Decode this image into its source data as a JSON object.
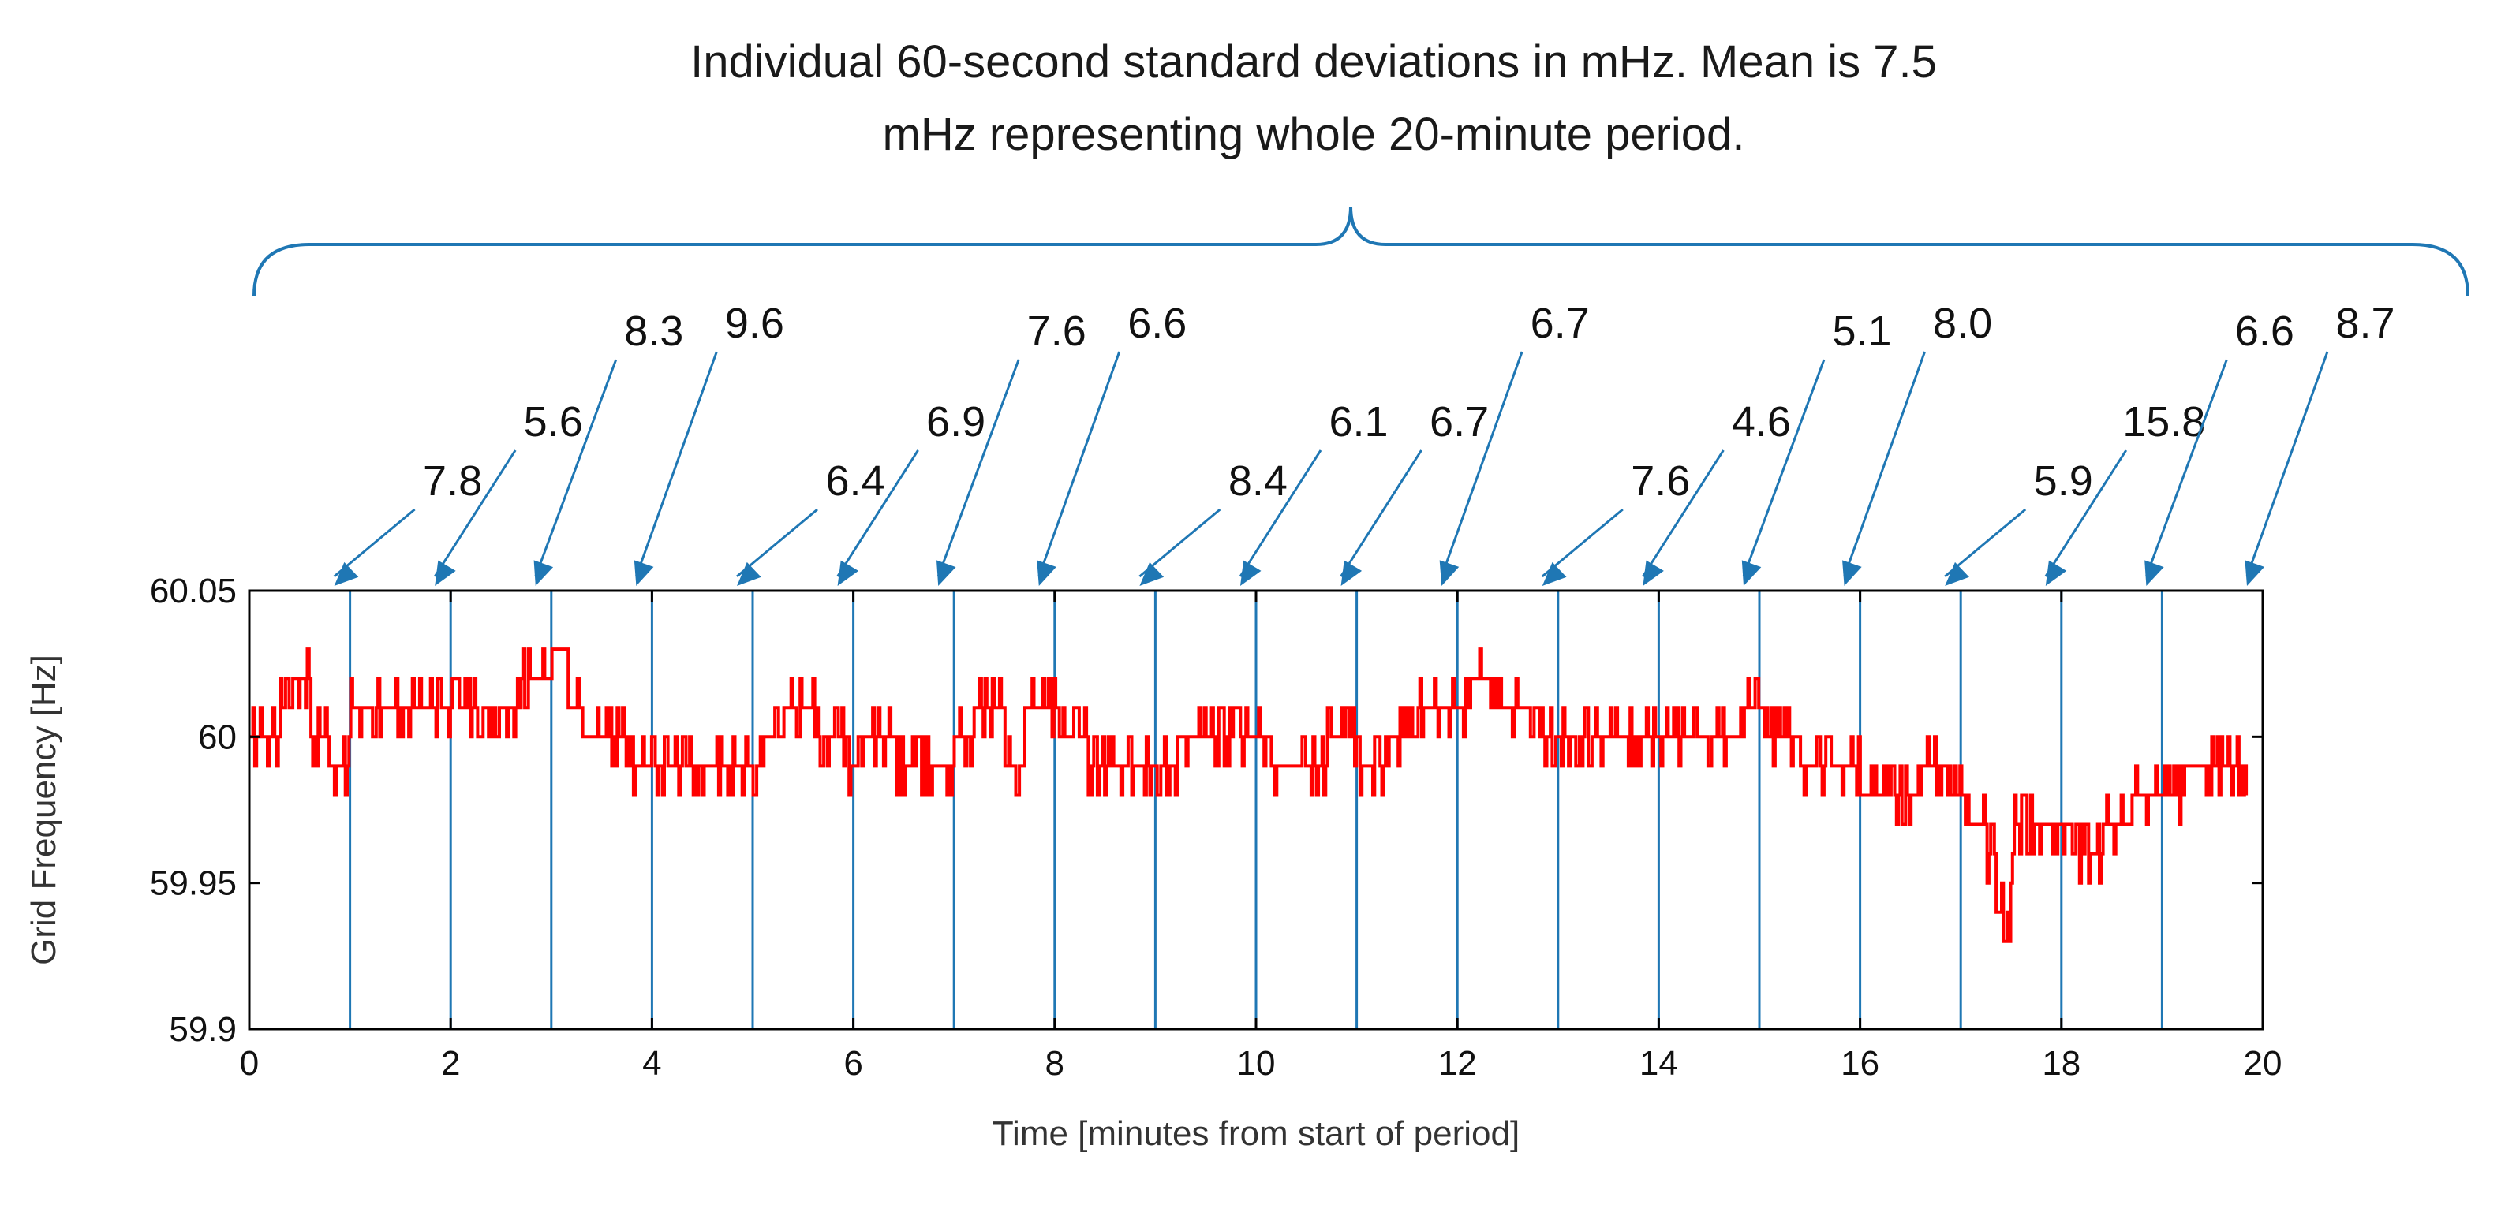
{
  "chart_data": {
    "type": "line",
    "title": "Individual 60-second standard deviations in mHz. Mean is 7.5 mHz representing whole 20-minute period.",
    "title_lines": [
      "Individual 60-second standard deviations in mHz. Mean is 7.5",
      "mHz representing whole 20-minute period."
    ],
    "xlabel": "Time [minutes from start of period]",
    "ylabel": "Grid Frequency [Hz]",
    "xlim": [
      0,
      20
    ],
    "ylim": [
      59.9,
      60.05
    ],
    "x_ticks": [
      0,
      2,
      4,
      6,
      8,
      10,
      12,
      14,
      16,
      18,
      20
    ],
    "x_tick_labels": [
      "0",
      "2",
      "4",
      "6",
      "8",
      "10",
      "12",
      "14",
      "16",
      "18",
      "20"
    ],
    "y_ticks": [
      59.9,
      59.95,
      60,
      60.05
    ],
    "y_tick_labels": [
      "59.9",
      "59.95",
      "60",
      "60.05"
    ],
    "grid": false,
    "interval_boundaries_min": [
      1,
      2,
      3,
      4,
      5,
      6,
      7,
      8,
      9,
      10,
      11,
      12,
      13,
      14,
      15,
      16,
      17,
      18,
      19
    ],
    "interval_std_mhz": [
      {
        "minute": 1,
        "value": "7.8"
      },
      {
        "minute": 2,
        "value": "5.6"
      },
      {
        "minute": 3,
        "value": "8.3"
      },
      {
        "minute": 4,
        "value": "9.6"
      },
      {
        "minute": 5,
        "value": "6.4"
      },
      {
        "minute": 6,
        "value": "6.9"
      },
      {
        "minute": 7,
        "value": "7.6"
      },
      {
        "minute": 8,
        "value": "6.6"
      },
      {
        "minute": 9,
        "value": "8.4"
      },
      {
        "minute": 10,
        "value": "6.1"
      },
      {
        "minute": 11,
        "value": "6.7"
      },
      {
        "minute": 12,
        "value": "6.7"
      },
      {
        "minute": 13,
        "value": "7.6"
      },
      {
        "minute": 14,
        "value": "4.6"
      },
      {
        "minute": 15,
        "value": "5.1"
      },
      {
        "minute": 16,
        "value": "8.0"
      },
      {
        "minute": 17,
        "value": "5.9"
      },
      {
        "minute": 18,
        "value": "15.8"
      },
      {
        "minute": 19,
        "value": "6.6"
      },
      {
        "minute": 20,
        "value": "8.7"
      }
    ],
    "mean_std_mhz": 7.5,
    "series": [
      {
        "name": "Grid Frequency",
        "color": "#ff0000",
        "x": [
          0,
          0.2,
          0.3,
          0.45,
          0.6,
          0.8,
          1.0,
          1.3,
          1.6,
          1.8,
          2.0,
          2.3,
          2.5,
          2.7,
          2.85,
          3.0,
          3.15,
          3.3,
          3.6,
          3.8,
          4.0,
          4.3,
          4.6,
          4.9,
          5.1,
          5.3,
          5.6,
          5.9,
          6.1,
          6.4,
          6.7,
          7.0,
          7.2,
          7.5,
          7.7,
          7.9,
          8.1,
          8.3,
          8.6,
          8.9,
          9.2,
          9.5,
          9.8,
          10.1,
          10.4,
          10.7,
          11.0,
          11.3,
          11.6,
          11.9,
          12.1,
          12.4,
          12.7,
          13.0,
          13.3,
          13.6,
          13.9,
          14.2,
          14.5,
          14.8,
          15.1,
          15.4,
          15.7,
          16.0,
          16.3,
          16.6,
          16.9,
          17.1,
          17.25,
          17.35,
          17.5,
          17.7,
          17.9,
          18.1,
          18.4,
          18.7,
          19.0,
          19.2,
          19.5,
          19.8
        ],
        "y": [
          60.0,
          60.0,
          60.01,
          60.02,
          60.0,
          59.99,
          60.01,
          60.01,
          60.01,
          60.01,
          60.01,
          60.0,
          60.01,
          60.02,
          60.02,
          60.03,
          60.01,
          60.0,
          60.0,
          59.99,
          59.99,
          59.99,
          59.99,
          59.99,
          60.0,
          60.01,
          60.0,
          59.99,
          60.0,
          59.99,
          59.99,
          60.0,
          60.01,
          59.99,
          60.01,
          60.01,
          60.0,
          59.99,
          59.99,
          59.99,
          60.0,
          60.0,
          60.0,
          59.99,
          59.99,
          60.0,
          59.99,
          60.0,
          60.01,
          60.01,
          60.02,
          60.01,
          60.0,
          60.0,
          60.0,
          60.0,
          60.0,
          60.0,
          60.0,
          60.01,
          60.0,
          59.99,
          59.99,
          59.98,
          59.98,
          59.99,
          59.98,
          59.97,
          59.96,
          59.94,
          59.97,
          59.97,
          59.97,
          59.96,
          59.97,
          59.98,
          59.98,
          59.99,
          59.99,
          59.99
        ]
      }
    ]
  },
  "colors": {
    "data_line": "#ff0000",
    "annotation": "#1f77b4",
    "axes": "#000000"
  }
}
